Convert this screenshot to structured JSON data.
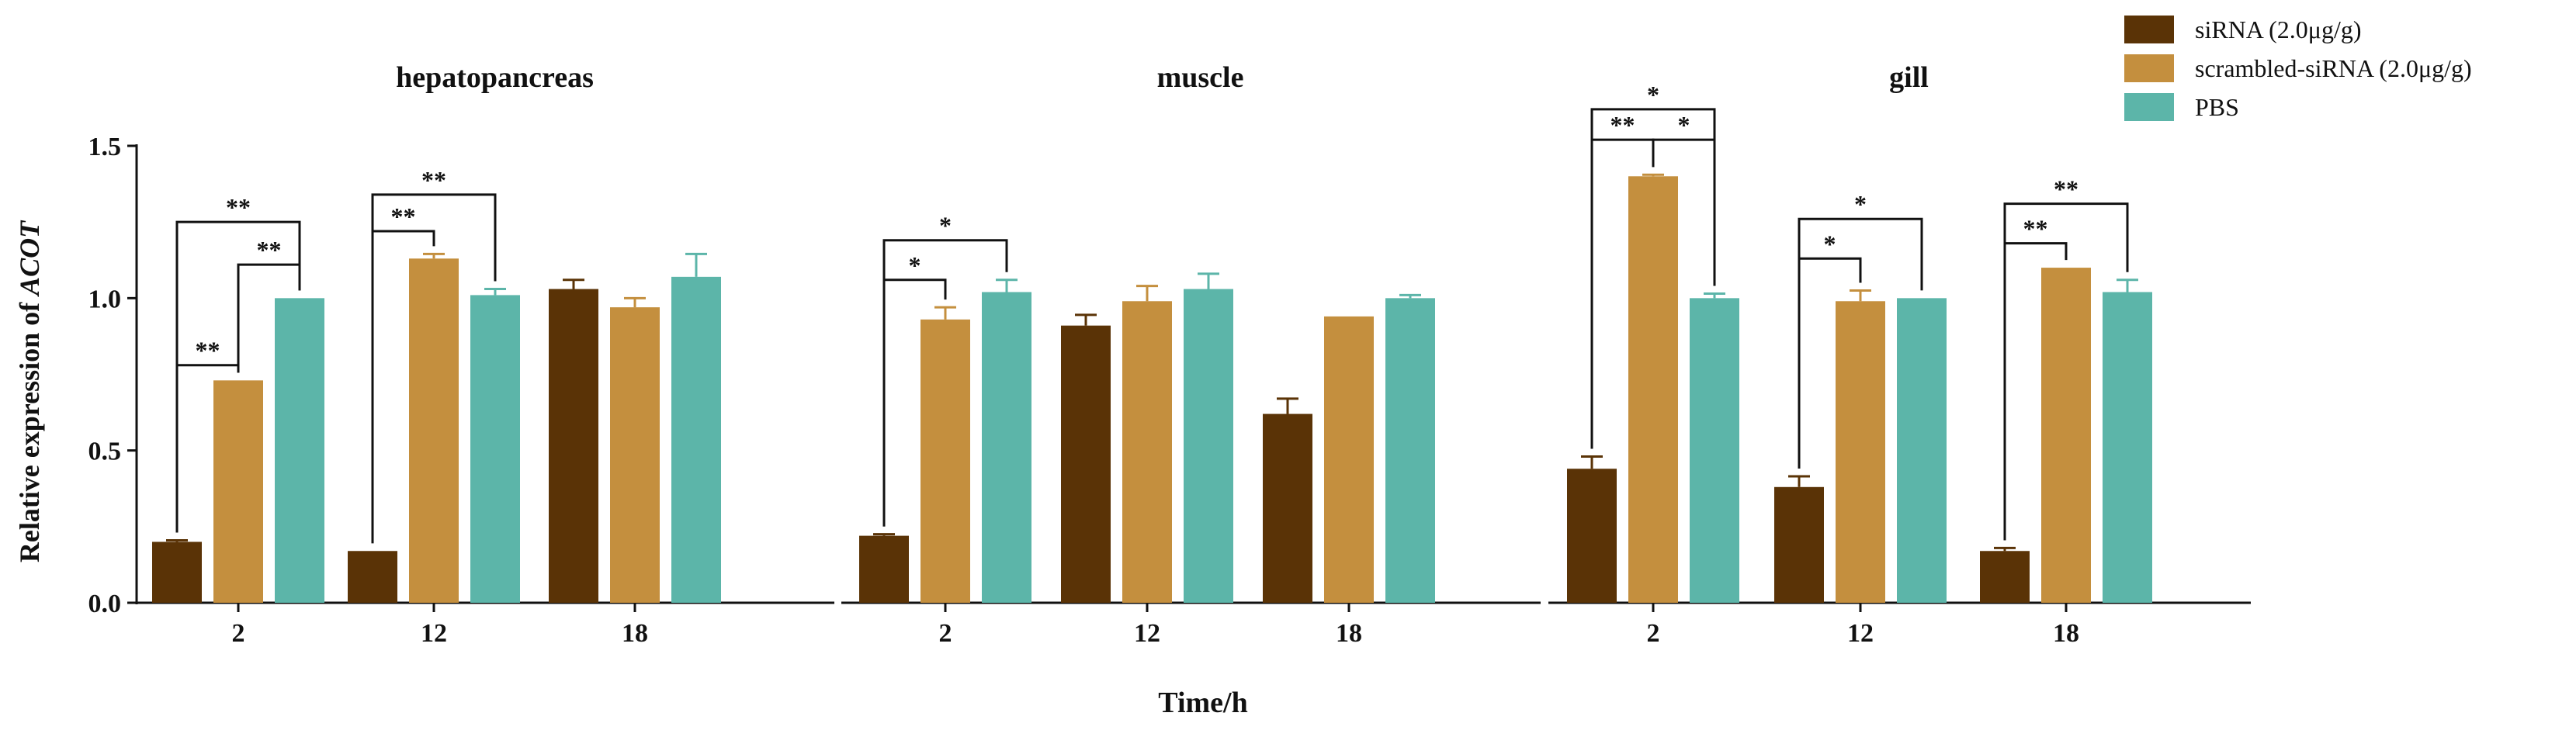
{
  "chart_data": {
    "type": "bar",
    "ylabel_prefix": "Relative expression of ",
    "ylabel_gene": "ACOT",
    "xlabel": "Time/h",
    "ylim": [
      0,
      1.5
    ],
    "yticks": [
      "0.0",
      "0.5",
      "1.0",
      "1.5"
    ],
    "series_colors": [
      "#5a3306",
      "#c48f3e",
      "#5cb5a9"
    ],
    "legend": {
      "position": "top-right",
      "items": [
        "siRNA (2.0μg/g)",
        "scrambled-siRNA (2.0μg/g)",
        "PBS"
      ]
    },
    "panels": [
      {
        "title": "hepatopancreas",
        "categories": [
          "2",
          "12",
          "18"
        ],
        "series": [
          {
            "name": "siRNA (2.0μg/g)",
            "values": [
              0.2,
              0.17,
              1.03
            ],
            "errors": [
              0.005,
              0.0,
              0.03
            ]
          },
          {
            "name": "scrambled-siRNA (2.0μg/g)",
            "values": [
              0.73,
              1.13,
              0.97
            ],
            "errors": [
              0.0,
              0.015,
              0.03
            ]
          },
          {
            "name": "PBS",
            "values": [
              1.0,
              1.01,
              1.07
            ],
            "errors": [
              0.0,
              0.02,
              0.075
            ]
          }
        ],
        "significance": [
          {
            "group": 0,
            "from": 0,
            "to": 1,
            "level": 0.78,
            "label": "**"
          },
          {
            "group": 0,
            "from": 1,
            "to": 2,
            "level": 1.11,
            "label": "**"
          },
          {
            "group": 0,
            "from": 0,
            "to": 2,
            "level": 1.25,
            "label": "**"
          },
          {
            "group": 1,
            "from": 0,
            "to": 1,
            "level": 1.22,
            "label": "**"
          },
          {
            "group": 1,
            "from": 0,
            "to": 2,
            "level": 1.34,
            "label": "**"
          }
        ]
      },
      {
        "title": "muscle",
        "categories": [
          "2",
          "12",
          "18"
        ],
        "series": [
          {
            "name": "siRNA (2.0μg/g)",
            "values": [
              0.22,
              0.91,
              0.62
            ],
            "errors": [
              0.005,
              0.035,
              0.05
            ]
          },
          {
            "name": "scrambled-siRNA (2.0μg/g)",
            "values": [
              0.93,
              0.99,
              0.94
            ],
            "errors": [
              0.04,
              0.05,
              0.0
            ]
          },
          {
            "name": "PBS",
            "values": [
              1.02,
              1.03,
              1.0
            ],
            "errors": [
              0.04,
              0.05,
              0.01
            ]
          }
        ],
        "significance": [
          {
            "group": 0,
            "from": 0,
            "to": 1,
            "level": 1.06,
            "label": "*"
          },
          {
            "group": 0,
            "from": 0,
            "to": 2,
            "level": 1.19,
            "label": "*"
          }
        ]
      },
      {
        "title": "gill",
        "categories": [
          "2",
          "12",
          "18"
        ],
        "series": [
          {
            "name": "siRNA (2.0μg/g)",
            "values": [
              0.44,
              0.38,
              0.17
            ],
            "errors": [
              0.04,
              0.035,
              0.01
            ]
          },
          {
            "name": "scrambled-siRNA (2.0μg/g)",
            "values": [
              1.4,
              0.99,
              1.1
            ],
            "errors": [
              0.005,
              0.035,
              0.0
            ]
          },
          {
            "name": "PBS",
            "values": [
              1.0,
              1.0,
              1.02
            ],
            "errors": [
              0.015,
              0.0,
              0.04
            ]
          }
        ],
        "significance": [
          {
            "group": 0,
            "from": 0,
            "to": 1,
            "level": 1.52,
            "label": "**"
          },
          {
            "group": 0,
            "from": 1,
            "to": 2,
            "level": 1.52,
            "label": "*"
          },
          {
            "group": 0,
            "from": 0,
            "to": 2,
            "level": 1.62,
            "label": "*"
          },
          {
            "group": 1,
            "from": 0,
            "to": 1,
            "level": 1.13,
            "label": "*"
          },
          {
            "group": 1,
            "from": 0,
            "to": 2,
            "level": 1.26,
            "label": "*"
          },
          {
            "group": 2,
            "from": 0,
            "to": 1,
            "level": 1.18,
            "label": "**"
          },
          {
            "group": 2,
            "from": 0,
            "to": 2,
            "level": 1.31,
            "label": "**"
          }
        ]
      }
    ]
  }
}
